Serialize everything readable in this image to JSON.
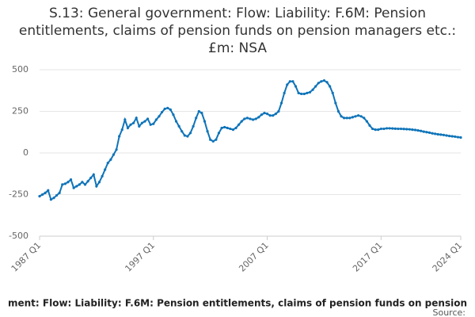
{
  "chart_data": {
    "type": "line",
    "title": "S.13: General government: Flow: Liability: F.6M: Pension entitlements, claims of pension funds on pension managers etc.: £m: NSA",
    "footer": "ment: Flow: Liability: F.6M: Pension entitlements, claims of pension funds on pension",
    "source": "Source:",
    "categories": [
      "1987 Q1",
      null,
      null,
      null,
      null,
      null,
      null,
      null,
      null,
      null,
      null,
      null,
      null,
      null,
      null,
      null,
      null,
      null,
      null,
      null,
      null,
      null,
      null,
      null,
      null,
      null,
      null,
      null,
      null,
      null,
      null,
      null,
      null,
      null,
      null,
      null,
      null,
      null,
      null,
      null,
      "1997 Q1",
      null,
      null,
      null,
      null,
      null,
      null,
      null,
      null,
      null,
      null,
      null,
      null,
      null,
      null,
      null,
      null,
      null,
      null,
      null,
      null,
      null,
      null,
      null,
      null,
      null,
      null,
      null,
      null,
      null,
      null,
      null,
      null,
      null,
      null,
      null,
      null,
      null,
      null,
      null,
      "2007 Q1",
      null,
      null,
      null,
      null,
      null,
      null,
      null,
      null,
      null,
      null,
      null,
      null,
      null,
      null,
      null,
      null,
      null,
      null,
      null,
      null,
      null,
      null,
      null,
      null,
      null,
      null,
      null,
      null,
      null,
      null,
      null,
      null,
      null,
      null,
      null,
      null,
      null,
      null,
      null,
      "2017 Q1",
      null,
      null,
      null,
      null,
      null,
      null,
      null,
      null,
      null,
      null,
      null,
      null,
      null,
      null,
      null,
      null,
      null,
      null,
      null,
      null,
      null,
      null,
      null,
      null,
      null,
      null,
      null,
      "2024 Q1"
    ],
    "series": [
      {
        "color": "#0f74b9",
        "values": [
          -260,
          -250,
          -240,
          -225,
          -280,
          -270,
          -255,
          -240,
          -190,
          -185,
          -175,
          -160,
          -210,
          -200,
          -190,
          -175,
          -190,
          -170,
          -150,
          -130,
          -200,
          -175,
          -140,
          -100,
          -60,
          -40,
          -10,
          20,
          100,
          140,
          200,
          150,
          170,
          180,
          210,
          160,
          180,
          190,
          205,
          170,
          175,
          200,
          220,
          245,
          265,
          270,
          260,
          230,
          190,
          160,
          130,
          105,
          100,
          120,
          160,
          210,
          250,
          240,
          190,
          130,
          80,
          70,
          80,
          120,
          150,
          155,
          150,
          145,
          140,
          150,
          170,
          190,
          205,
          210,
          205,
          200,
          205,
          215,
          230,
          240,
          235,
          225,
          225,
          235,
          250,
          300,
          360,
          410,
          430,
          430,
          400,
          360,
          355,
          355,
          360,
          365,
          380,
          400,
          420,
          430,
          435,
          425,
          400,
          360,
          300,
          250,
          220,
          210,
          210,
          210,
          215,
          220,
          225,
          220,
          210,
          190,
          165,
          145,
          140,
          140,
          145,
          145,
          148,
          148,
          147,
          146,
          145,
          145,
          144,
          143,
          142,
          140,
          138,
          135,
          132,
          128,
          125,
          122,
          118,
          115,
          112,
          110,
          108,
          105,
          102,
          100,
          98,
          95,
          93
        ]
      }
    ],
    "ylim": [
      -500,
      500
    ],
    "yticks": [
      -500,
      -250,
      0,
      250,
      500
    ],
    "grid": true
  }
}
